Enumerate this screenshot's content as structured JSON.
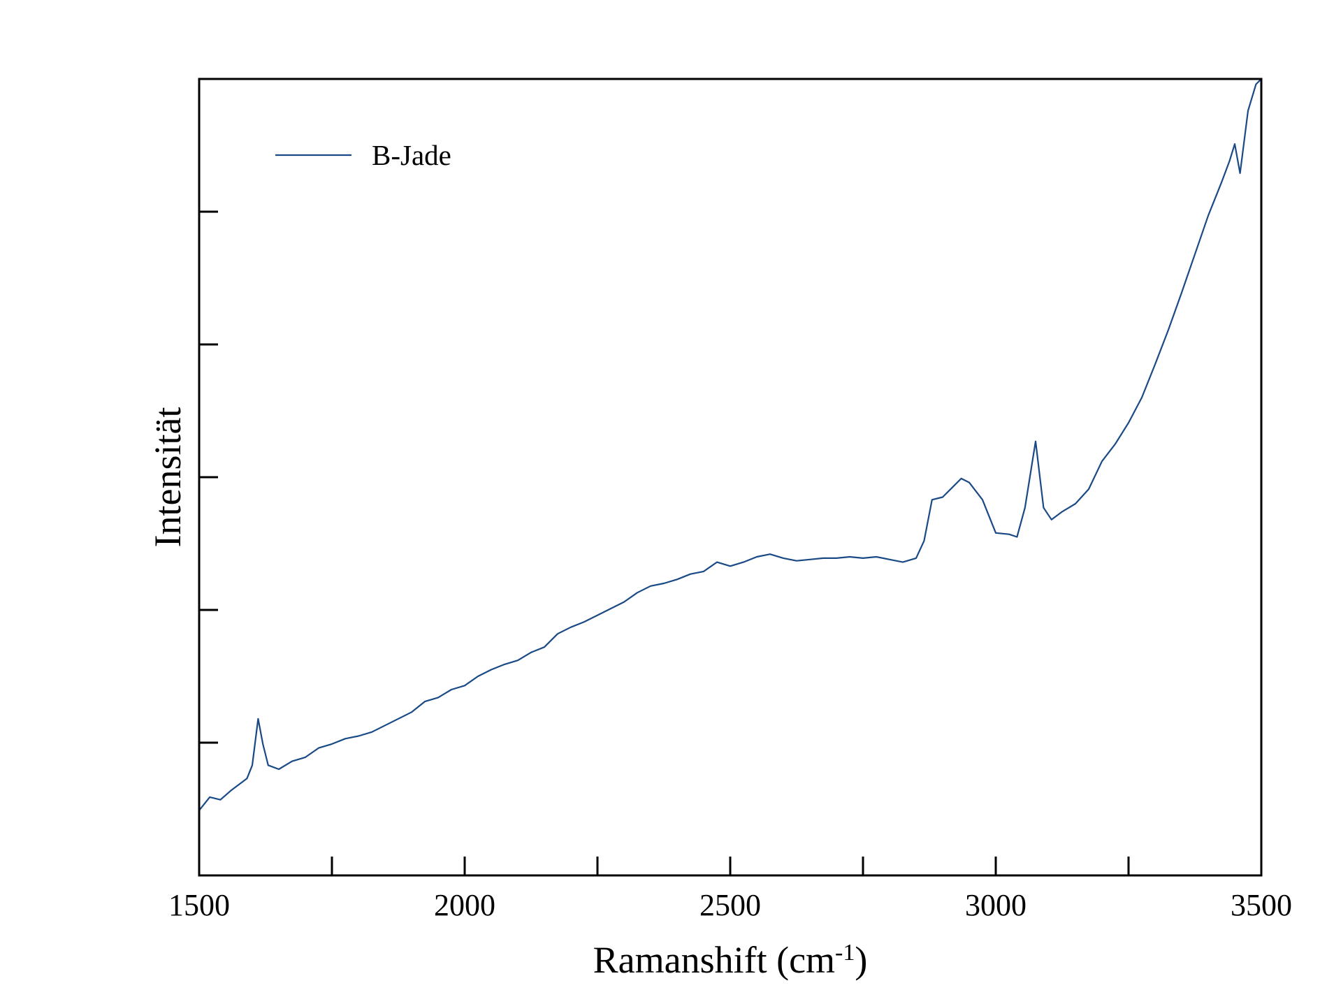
{
  "chart_data": {
    "type": "line",
    "x_label": [
      "Ramanshift (cm",
      "-1",
      ")"
    ],
    "y_label": "Intensität",
    "xlim": [
      1500,
      3500
    ],
    "xticks": [
      1500,
      2000,
      2500,
      3000,
      3500
    ],
    "xminorticks": [
      1750,
      2250,
      2750,
      3250
    ],
    "ylim": [
      0,
      6
    ],
    "yticks": [
      1,
      2,
      3,
      4,
      5
    ],
    "legend": "upper left",
    "x": [
      1500,
      1520,
      1540,
      1560,
      1580,
      1590,
      1600,
      1611,
      1620,
      1630,
      1650,
      1675,
      1700,
      1725,
      1750,
      1775,
      1800,
      1825,
      1850,
      1875,
      1900,
      1925,
      1950,
      1975,
      2000,
      2025,
      2050,
      2075,
      2100,
      2125,
      2150,
      2175,
      2200,
      2225,
      2250,
      2275,
      2300,
      2325,
      2350,
      2375,
      2400,
      2425,
      2450,
      2475,
      2500,
      2525,
      2550,
      2575,
      2600,
      2625,
      2650,
      2675,
      2700,
      2725,
      2750,
      2775,
      2800,
      2825,
      2850,
      2865,
      2880,
      2900,
      2920,
      2935,
      2950,
      2975,
      3000,
      3025,
      3040,
      3055,
      3075,
      3090,
      3105,
      3125,
      3150,
      3175,
      3200,
      3225,
      3250,
      3275,
      3300,
      3325,
      3350,
      3375,
      3400,
      3425,
      3440,
      3450,
      3460,
      3475,
      3490,
      3500
    ],
    "series": [
      {
        "name": "B-Jade",
        "color": "#1a4a85",
        "values": [
          0.49,
          0.59,
          0.57,
          0.64,
          0.7,
          0.73,
          0.83,
          1.18,
          0.99,
          0.83,
          0.8,
          0.86,
          0.89,
          0.96,
          0.99,
          1.03,
          1.05,
          1.08,
          1.13,
          1.18,
          1.23,
          1.31,
          1.34,
          1.4,
          1.43,
          1.5,
          1.55,
          1.59,
          1.62,
          1.68,
          1.72,
          1.82,
          1.87,
          1.91,
          1.96,
          2.01,
          2.06,
          2.13,
          2.18,
          2.2,
          2.23,
          2.27,
          2.29,
          2.36,
          2.33,
          2.36,
          2.4,
          2.42,
          2.39,
          2.37,
          2.38,
          2.39,
          2.39,
          2.4,
          2.39,
          2.4,
          2.38,
          2.36,
          2.39,
          2.52,
          2.83,
          2.85,
          2.93,
          2.99,
          2.96,
          2.83,
          2.58,
          2.57,
          2.55,
          2.77,
          3.27,
          2.77,
          2.68,
          2.74,
          2.8,
          2.91,
          3.12,
          3.25,
          3.41,
          3.6,
          3.85,
          4.11,
          4.39,
          4.68,
          4.97,
          5.22,
          5.38,
          5.51,
          5.29,
          5.76,
          5.96,
          6.0
        ]
      }
    ]
  }
}
